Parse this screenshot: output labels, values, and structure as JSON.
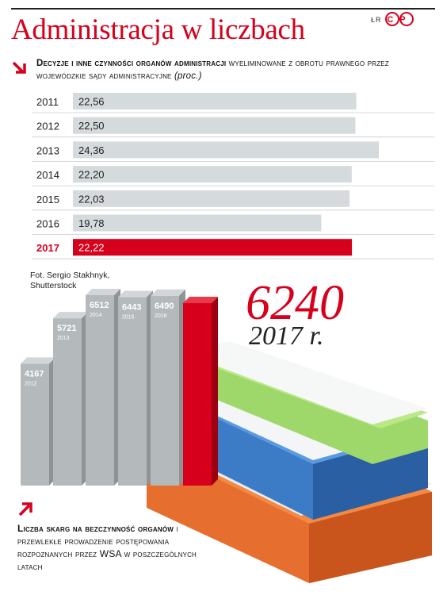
{
  "header": {
    "title": "Administracja w liczbach",
    "credit": "ŁR",
    "logo_text": "CP"
  },
  "section1": {
    "subtitle_bold": "Decyzje i inne czynności organów administracji",
    "subtitle_rest": " wyeliminowane z obrotu prawnego przez wojewódzkie sądy administracyjne ",
    "subtitle_unit": "(proc.)"
  },
  "section2": {
    "photo_credit_line1": "Fot. Sergio Stakhnyk,",
    "photo_credit_line2": "Shutterstock",
    "big_number": "6240",
    "big_year": "2017 r.",
    "subtitle_bold": "Liczba skarg na bezczynność organów",
    "subtitle_rest": " i przewlekłe prowadzenie postępowania rozpoznanych przez WSA w poszczególnych latach"
  },
  "colors": {
    "accent": "#d6001c",
    "bar_gray": "#d5dadd",
    "col_front": "#b4b9bc",
    "col_side": "#8e9396",
    "col_top": "#d2d6d8"
  },
  "chart_data": [
    {
      "type": "bar",
      "orientation": "horizontal",
      "categories": [
        "2011",
        "2012",
        "2013",
        "2014",
        "2015",
        "2016",
        "2017"
      ],
      "values": [
        22.56,
        22.5,
        24.36,
        22.2,
        22.03,
        19.78,
        22.22
      ],
      "value_labels": [
        "22,56",
        "22,50",
        "24,36",
        "22,20",
        "22,03",
        "19,78",
        "22,22"
      ],
      "highlight": "2017",
      "title": "Decyzje i inne czynności organów administracji wyeliminowane z obrotu prawnego przez wojewódzkie sądy administracyjne (proc.)"
    },
    {
      "type": "bar",
      "orientation": "vertical",
      "categories": [
        "2012",
        "2013",
        "2014",
        "2015",
        "2016",
        "2017"
      ],
      "values": [
        4167,
        5721,
        6512,
        6443,
        6490,
        6240
      ],
      "value_labels": [
        "4167",
        "5721",
        "6512",
        "6443",
        "6490",
        "6240"
      ],
      "highlight": "2017",
      "title": "Liczba skarg na bezczynność organów i przewlekłe prowadzenie postępowania rozpoznanych przez WSA w poszczególnych latach"
    }
  ]
}
